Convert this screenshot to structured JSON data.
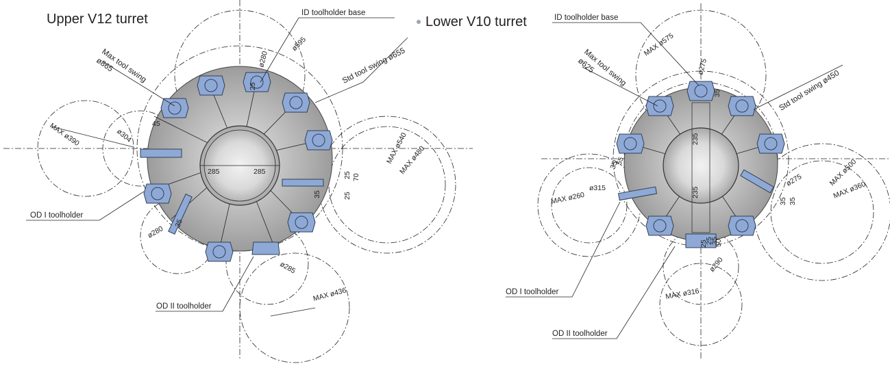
{
  "upper": {
    "title": "Upper V12 turret",
    "callouts": {
      "id_base": "ID toolholder base",
      "max_swing_a": "Max tool swing",
      "max_swing_b": "ø865",
      "std_swing": "Std tool swing ø655",
      "od1": "OD I toolholder",
      "od2": "OD II toolholder"
    },
    "dims": [
      "ø280",
      "ø595",
      "25",
      "45",
      "ø304",
      "MAX ø390",
      "285",
      "285",
      "MAX ø540",
      "MAX ø480",
      "25",
      "70",
      "25",
      "35",
      "ø280",
      "35",
      "ø285",
      "MAX ø436"
    ]
  },
  "lower": {
    "title": "Lower V10 turret",
    "callouts": {
      "id_base": "ID toolholder base",
      "max_swing_a": "Max tool swing",
      "max_swing_b": "ø625",
      "std_swing": "Std tool swing ø450",
      "od1": "OD I toolholder",
      "od2": "OD II toolholder"
    },
    "dims": [
      "MAX ø575",
      "ø275",
      "35",
      "235",
      "235",
      "35",
      "55",
      "ø315",
      "MAX ø260",
      "ø275",
      "MAX ø500",
      "MAX ø360",
      "35",
      "35",
      "25",
      "25",
      "35",
      "50",
      "ø290",
      "MAX ø316"
    ]
  },
  "colors": {
    "holder_blue": "#8fa9d6",
    "turret_gray": "#c9c9c9",
    "line": "#222222",
    "bullet": "#9aa5b1"
  }
}
